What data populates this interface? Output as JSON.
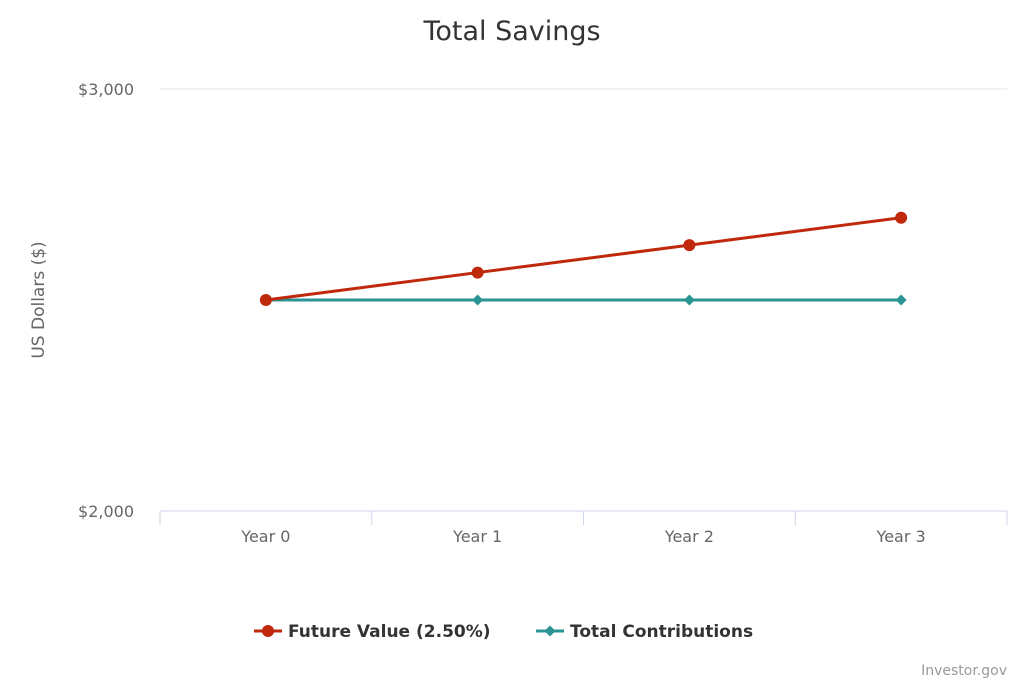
{
  "chart_data": {
    "type": "line",
    "title": "Total Savings",
    "ylabel": "US Dollars ($)",
    "xlabel": "",
    "categories": [
      "Year 0",
      "Year 1",
      "Year 2",
      "Year 3"
    ],
    "ylim": [
      2000,
      3000
    ],
    "yticks": [
      {
        "value": 3000,
        "label": "$3,000"
      },
      {
        "value": 2000,
        "label": "$2,000"
      }
    ],
    "grid": true,
    "legend_position": "bottom-center",
    "series": [
      {
        "name": "Future Value (2.50%)",
        "values": [
          2500,
          2565,
          2630,
          2695
        ],
        "color": "#c0280c",
        "marker": "circle"
      },
      {
        "name": "Total Contributions",
        "values": [
          2500,
          2500,
          2500,
          2500
        ],
        "color": "#2a9393",
        "marker": "diamond"
      }
    ]
  },
  "credit": "Investor.gov"
}
